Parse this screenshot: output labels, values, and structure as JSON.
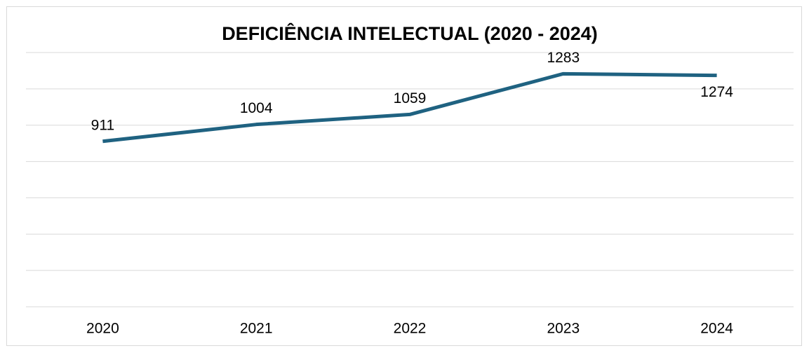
{
  "chart_data": {
    "type": "line",
    "title": "DEFICIÊNCIA INTELECTUAL (2020 - 2024)",
    "categories": [
      "2020",
      "2021",
      "2022",
      "2023",
      "2024"
    ],
    "values": [
      911,
      1004,
      1059,
      1283,
      1274
    ],
    "color": "#1f6281",
    "ylim": [
      0,
      1400
    ],
    "yticks": [
      0,
      200,
      400,
      600,
      800,
      1000,
      1200,
      1400
    ],
    "grid": true
  }
}
